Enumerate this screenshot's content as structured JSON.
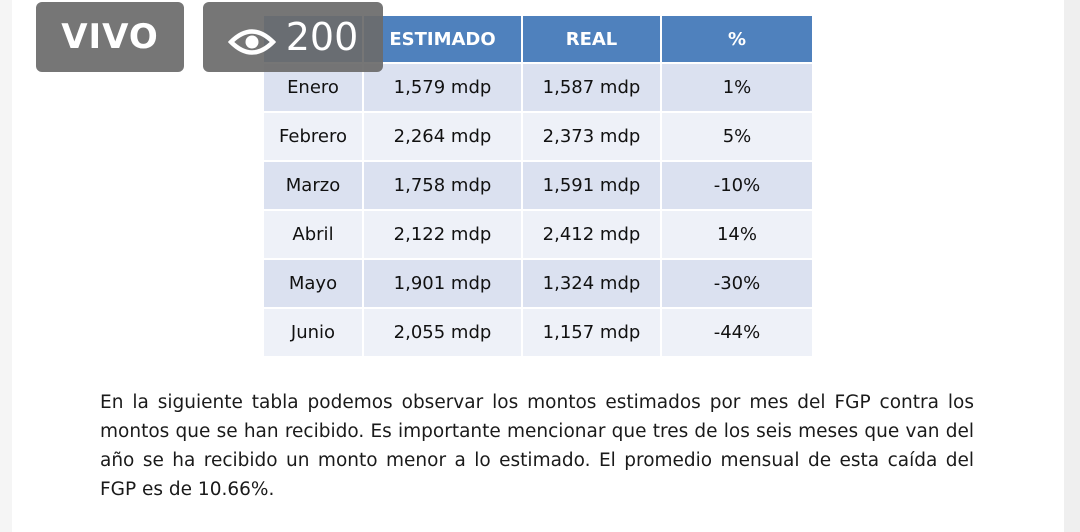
{
  "overlay": {
    "live_label": "VIVO",
    "viewer_count": "200"
  },
  "table": {
    "headers": [
      "",
      "ESTIMADO",
      "REAL",
      "%"
    ],
    "rows": [
      [
        "Enero",
        "1,579 mdp",
        "1,587 mdp",
        "1%"
      ],
      [
        "Febrero",
        "2,264 mdp",
        "2,373 mdp",
        "5%"
      ],
      [
        "Marzo",
        "1,758 mdp",
        "1,591 mdp",
        "-10%"
      ],
      [
        "Abril",
        "2,122 mdp",
        "2,412 mdp",
        "14%"
      ],
      [
        "Mayo",
        "1,901 mdp",
        "1,324 mdp",
        "-30%"
      ],
      [
        "Junio",
        "2,055 mdp",
        "1,157 mdp",
        "-44%"
      ]
    ]
  },
  "paragraph": "En la siguiente tabla podemos observar los montos estimados por mes del FGP contra los montos que se han recibido. Es importante mencionar que tres de los seis meses que van del año se ha recibido un monto menor a lo estimado. El promedio mensual de esta caída del FGP es de 10.66%.",
  "colors": {
    "header_bg": "#4f81bd",
    "row_odd_bg": "#dbe1f0",
    "row_even_bg": "#eef1f8",
    "badge_bg": "#6c6c6c"
  },
  "icons": {
    "viewers": "eye-icon"
  }
}
